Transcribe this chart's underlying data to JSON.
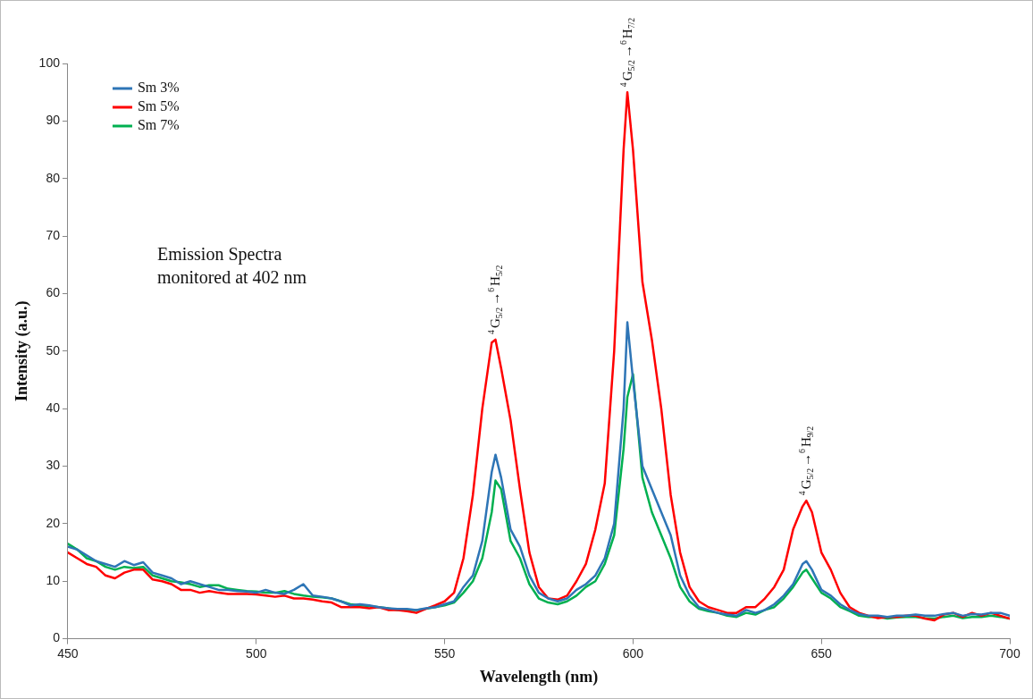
{
  "chart_data": {
    "type": "line",
    "xlabel": "Wavelength (nm)",
    "ylabel": "Intensity (a.u.)",
    "x": [
      450,
      452.5,
      455,
      457.5,
      460,
      462.5,
      465,
      467.5,
      470,
      472.5,
      475,
      477.5,
      480,
      482.5,
      485,
      487.5,
      490,
      492.5,
      495,
      497.5,
      500,
      502.5,
      505,
      507.5,
      510,
      512.5,
      515,
      517.5,
      520,
      522.5,
      525,
      527.5,
      530,
      532.5,
      535,
      537.5,
      540,
      542.5,
      545,
      547.5,
      550,
      552.5,
      555,
      557.5,
      560,
      562.5,
      563.5,
      565,
      567.5,
      570,
      572.5,
      575,
      577.5,
      580,
      582.5,
      585,
      587.5,
      590,
      592.5,
      595,
      597.5,
      598.5,
      600,
      602.5,
      605,
      607.5,
      610,
      612.5,
      615,
      617.5,
      620,
      622.5,
      625,
      627.5,
      630,
      632.5,
      635,
      637.5,
      640,
      642.5,
      645,
      646,
      647.5,
      650,
      652.5,
      655,
      657.5,
      660,
      662.5,
      665,
      667.5,
      670,
      672.5,
      675,
      677.5,
      680,
      682.5,
      685,
      687.5,
      690,
      692.5,
      695,
      697.5,
      700
    ],
    "series": [
      {
        "name": "Sm 3%",
        "color": "#2e75b6",
        "values": [
          16,
          15.5,
          14.5,
          13.5,
          13,
          12.5,
          13.5,
          12.8,
          13.3,
          11.5,
          11,
          10.5,
          9.5,
          10,
          9.5,
          9,
          8.5,
          8.5,
          8.3,
          8.2,
          8,
          8.5,
          8,
          7.8,
          8.5,
          9.5,
          7.5,
          7.3,
          7,
          6.5,
          5.8,
          6,
          5.8,
          5.5,
          5.3,
          5.2,
          5.2,
          5,
          5.3,
          5.5,
          6,
          6.5,
          9,
          11,
          17,
          29,
          32,
          28,
          19,
          16,
          11,
          8,
          7,
          6.5,
          7,
          8.5,
          9.5,
          11,
          14,
          20,
          40,
          55,
          45,
          30,
          26,
          22,
          18,
          11,
          7.5,
          5.5,
          5,
          4.5,
          4.2,
          4,
          5,
          4.5,
          5,
          6,
          7.5,
          9.5,
          13,
          13.5,
          12,
          8.5,
          7.5,
          6,
          5,
          4.3,
          4,
          4,
          3.8,
          4,
          4,
          4.2,
          4,
          4,
          4.3,
          4.5,
          4,
          4.3,
          4.2,
          4.5,
          4.5,
          4
        ]
      },
      {
        "name": "Sm 5%",
        "color": "#ff0000",
        "values": [
          15,
          14,
          13,
          12.5,
          11,
          10.5,
          11.5,
          12,
          12,
          10.3,
          10,
          9.5,
          8.5,
          8.5,
          8,
          8.3,
          8,
          7.8,
          7.8,
          7.8,
          7.7,
          7.5,
          7.3,
          7.5,
          7,
          7,
          6.8,
          6.5,
          6.3,
          5.5,
          5.5,
          5.5,
          5.3,
          5.5,
          5,
          5,
          4.8,
          4.5,
          5.2,
          5.8,
          6.5,
          8,
          14,
          25,
          40,
          51.5,
          52,
          47,
          38,
          26,
          15,
          9,
          7,
          6.8,
          7.5,
          10,
          13,
          19,
          27,
          50,
          85,
          95,
          85,
          62,
          52,
          40,
          25,
          15,
          9,
          6.5,
          5.5,
          5,
          4.5,
          4.5,
          5.5,
          5.5,
          7,
          9,
          12,
          19,
          23,
          24,
          22,
          15,
          12,
          8,
          5.5,
          4.5,
          4,
          3.6,
          3.8,
          3.8,
          4,
          4,
          3.5,
          3.2,
          4.2,
          4.5,
          3.8,
          4.5,
          4,
          4.5,
          4,
          3.5
        ]
      },
      {
        "name": "Sm 7%",
        "color": "#00b050",
        "values": [
          16.5,
          15.5,
          14,
          13.5,
          12.5,
          12,
          12.5,
          12.3,
          12.5,
          11,
          10.5,
          10,
          9.8,
          9.5,
          9,
          9.3,
          9.3,
          8.7,
          8.5,
          8.3,
          8.2,
          8,
          8,
          8.3,
          7.8,
          7.5,
          7.3,
          7.2,
          7,
          6.5,
          6,
          5.8,
          5.7,
          5.5,
          5.3,
          5,
          5,
          5,
          5.2,
          5.5,
          5.8,
          6.3,
          8,
          10,
          14,
          22,
          27.5,
          26,
          17,
          14,
          9.5,
          7,
          6.3,
          6,
          6.5,
          7.5,
          9,
          10,
          13,
          18,
          33,
          42,
          46,
          28,
          22,
          18,
          14,
          9,
          6.5,
          5.2,
          4.8,
          4.5,
          4,
          3.8,
          4.5,
          4.2,
          5,
          5.5,
          7,
          9,
          11.5,
          12,
          10.5,
          8,
          7,
          5.5,
          4.8,
          4,
          3.8,
          3.8,
          3.5,
          3.7,
          3.8,
          3.8,
          3.6,
          3.5,
          3.8,
          4,
          3.6,
          3.8,
          3.8,
          4,
          3.8,
          3.5
        ]
      }
    ],
    "xlim": [
      450,
      700
    ],
    "xticks": [
      450,
      500,
      550,
      600,
      650,
      700
    ],
    "ylim": [
      0,
      100
    ],
    "yticks": [
      0,
      10,
      20,
      30,
      40,
      50,
      60,
      70,
      80,
      90,
      100
    ],
    "grid": false,
    "legend": "top left",
    "marker": "none",
    "line_style": "solid",
    "annotations": [
      "Emission Spectra monitored at 402 nm",
      {
        "text": "$^{4}$G$_{5/2}$→$^{6}$H$_{5/2}$",
        "x": 563.5,
        "y": 52
      },
      {
        "text": "$^{4}$G$_{5/2}$→$^{6}$H$_{7/2}$",
        "x": 598.5,
        "y": 95
      },
      {
        "text": "$^{4}$G$_{5/2}$→$^{6}$H$_{9/2}$",
        "x": 646,
        "y": 24
      }
    ]
  }
}
